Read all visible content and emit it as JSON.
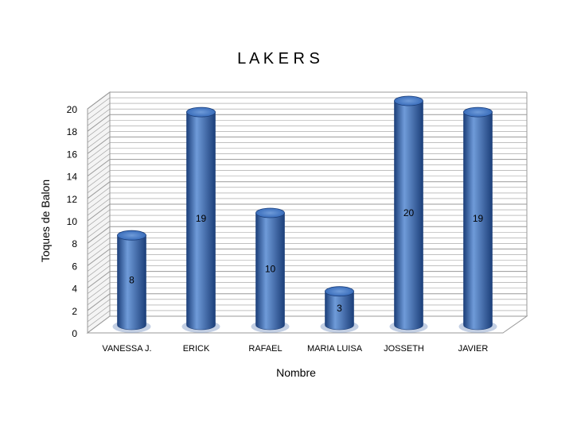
{
  "chart_data": {
    "type": "bar",
    "title": "L A K E R S",
    "xlabel": "Nombre",
    "ylabel": "Toques de Balon",
    "categories": [
      "VANESSA J.",
      "ERICK",
      "RAFAEL",
      "MARIA LUISA",
      "JOSSETH",
      "JAVIER"
    ],
    "values": [
      8,
      19,
      10,
      3,
      20,
      19
    ],
    "data_labels": [
      "8",
      "19",
      "10",
      "3",
      "20",
      "19"
    ],
    "ylim": [
      0,
      20
    ],
    "yticks": [
      0,
      2,
      4,
      6,
      8,
      10,
      12,
      14,
      16,
      18,
      20
    ],
    "grid": true,
    "legend": "none",
    "style": "3d-cylinder",
    "colors": {
      "bar": "#2f64b5",
      "bar_highlight": "#6f9bd9",
      "bar_dark": "#1c3f7a",
      "grid": "#9a9a9a",
      "text": "#000000"
    }
  }
}
